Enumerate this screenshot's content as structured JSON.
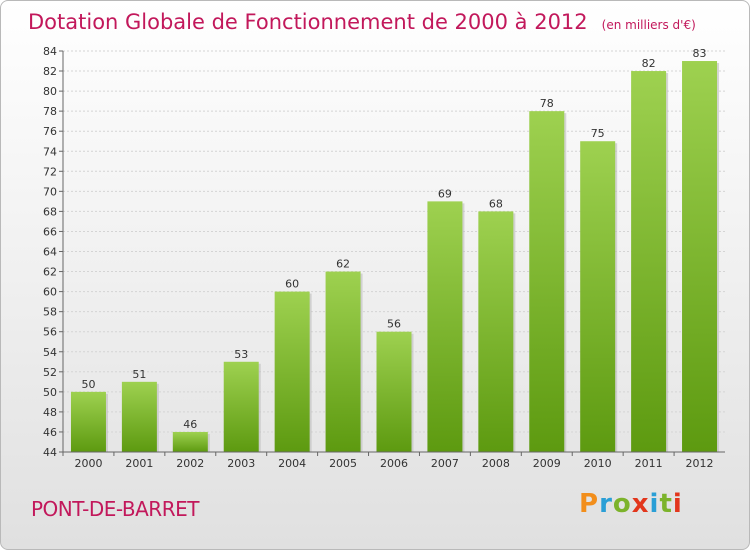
{
  "title": "Dotation Globale de Fonctionnement de 2000 à 2012",
  "unit_note": "(en milliers d'€)",
  "commune": "PONT-DE-BARRET",
  "logo": {
    "letters": [
      "P",
      "r",
      "o",
      "x",
      "i",
      "t",
      "i"
    ],
    "colors": [
      "#f28e1b",
      "#2a9fd6",
      "#7cb32b",
      "#e2361c",
      "#2a9fd6",
      "#7cb32b",
      "#e2361c"
    ]
  },
  "colors": {
    "title": "#c2185b",
    "bar_top": "#9ed150",
    "bar_bottom": "#5d9a10"
  },
  "chart_data": {
    "type": "bar",
    "categories": [
      "2000",
      "2001",
      "2002",
      "2003",
      "2004",
      "2005",
      "2006",
      "2007",
      "2008",
      "2009",
      "2010",
      "2011",
      "2012"
    ],
    "values": [
      50,
      51,
      46,
      53,
      60,
      62,
      56,
      69,
      68,
      78,
      75,
      82,
      83
    ],
    "ylim": [
      44,
      84
    ],
    "yticks": [
      44,
      46,
      48,
      50,
      52,
      54,
      56,
      58,
      60,
      62,
      64,
      66,
      68,
      70,
      72,
      74,
      76,
      78,
      80,
      82,
      84
    ],
    "grid": true,
    "xlabel": "",
    "ylabel": ""
  }
}
